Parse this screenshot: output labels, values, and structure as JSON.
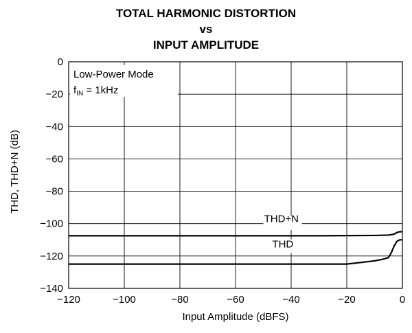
{
  "chart_data": {
    "type": "line",
    "title_lines": [
      "TOTAL HARMONIC DISTORTION",
      "vs",
      "INPUT AMPLITUDE"
    ],
    "xlabel": "Input Amplitude (dBFS)",
    "ylabel": "THD, THD+N (dB)",
    "xlim": [
      -120,
      0
    ],
    "ylim": [
      -140,
      0
    ],
    "xticks": [
      -120,
      -100,
      -80,
      -60,
      -40,
      -20,
      0
    ],
    "yticks": [
      0,
      -20,
      -40,
      -60,
      -80,
      -100,
      -120,
      -140
    ],
    "xtick_labels": [
      "−120",
      "−100",
      "−80",
      "−60",
      "−40",
      "−20",
      "0"
    ],
    "ytick_labels": [
      "0",
      "−20",
      "−40",
      "−60",
      "−80",
      "−100",
      "−120",
      "−140"
    ],
    "grid": true,
    "annotation": {
      "line1": "Low-Power Mode",
      "line2_prefix": "f",
      "line2_sub": "IN",
      "line2_suffix": " = 1kHz"
    },
    "series": [
      {
        "name": "THD+N",
        "x": [
          -120,
          -110,
          -100,
          -90,
          -80,
          -70,
          -60,
          -50,
          -40,
          -30,
          -20,
          -10,
          -5,
          -3,
          -2,
          -1,
          0
        ],
        "y": [
          -107.5,
          -107.5,
          -107.5,
          -107.5,
          -107.5,
          -107.5,
          -107.5,
          -107.5,
          -107.5,
          -107.5,
          -107.4,
          -107.3,
          -107.1,
          -106.5,
          -105.5,
          -105.0,
          -105.0
        ]
      },
      {
        "name": "THD",
        "x": [
          -120,
          -115,
          -110,
          -105,
          -100,
          -95,
          -90,
          -85,
          -80,
          -75,
          -70,
          -65,
          -60,
          -55,
          -50,
          -45,
          -40,
          -35,
          -30,
          -25,
          -20,
          -15,
          -10,
          -7,
          -5,
          -4,
          -3,
          -2,
          -1,
          0
        ],
        "y": [
          -125,
          -125,
          -125,
          -125,
          -125,
          -125,
          -125,
          -125,
          -125,
          -125,
          -125,
          -125,
          -125,
          -125,
          -125,
          -125,
          -125,
          -125,
          -125,
          -125,
          -125,
          -124,
          -123,
          -122,
          -121,
          -118,
          -114,
          -111,
          -110,
          -110
        ]
      }
    ]
  }
}
